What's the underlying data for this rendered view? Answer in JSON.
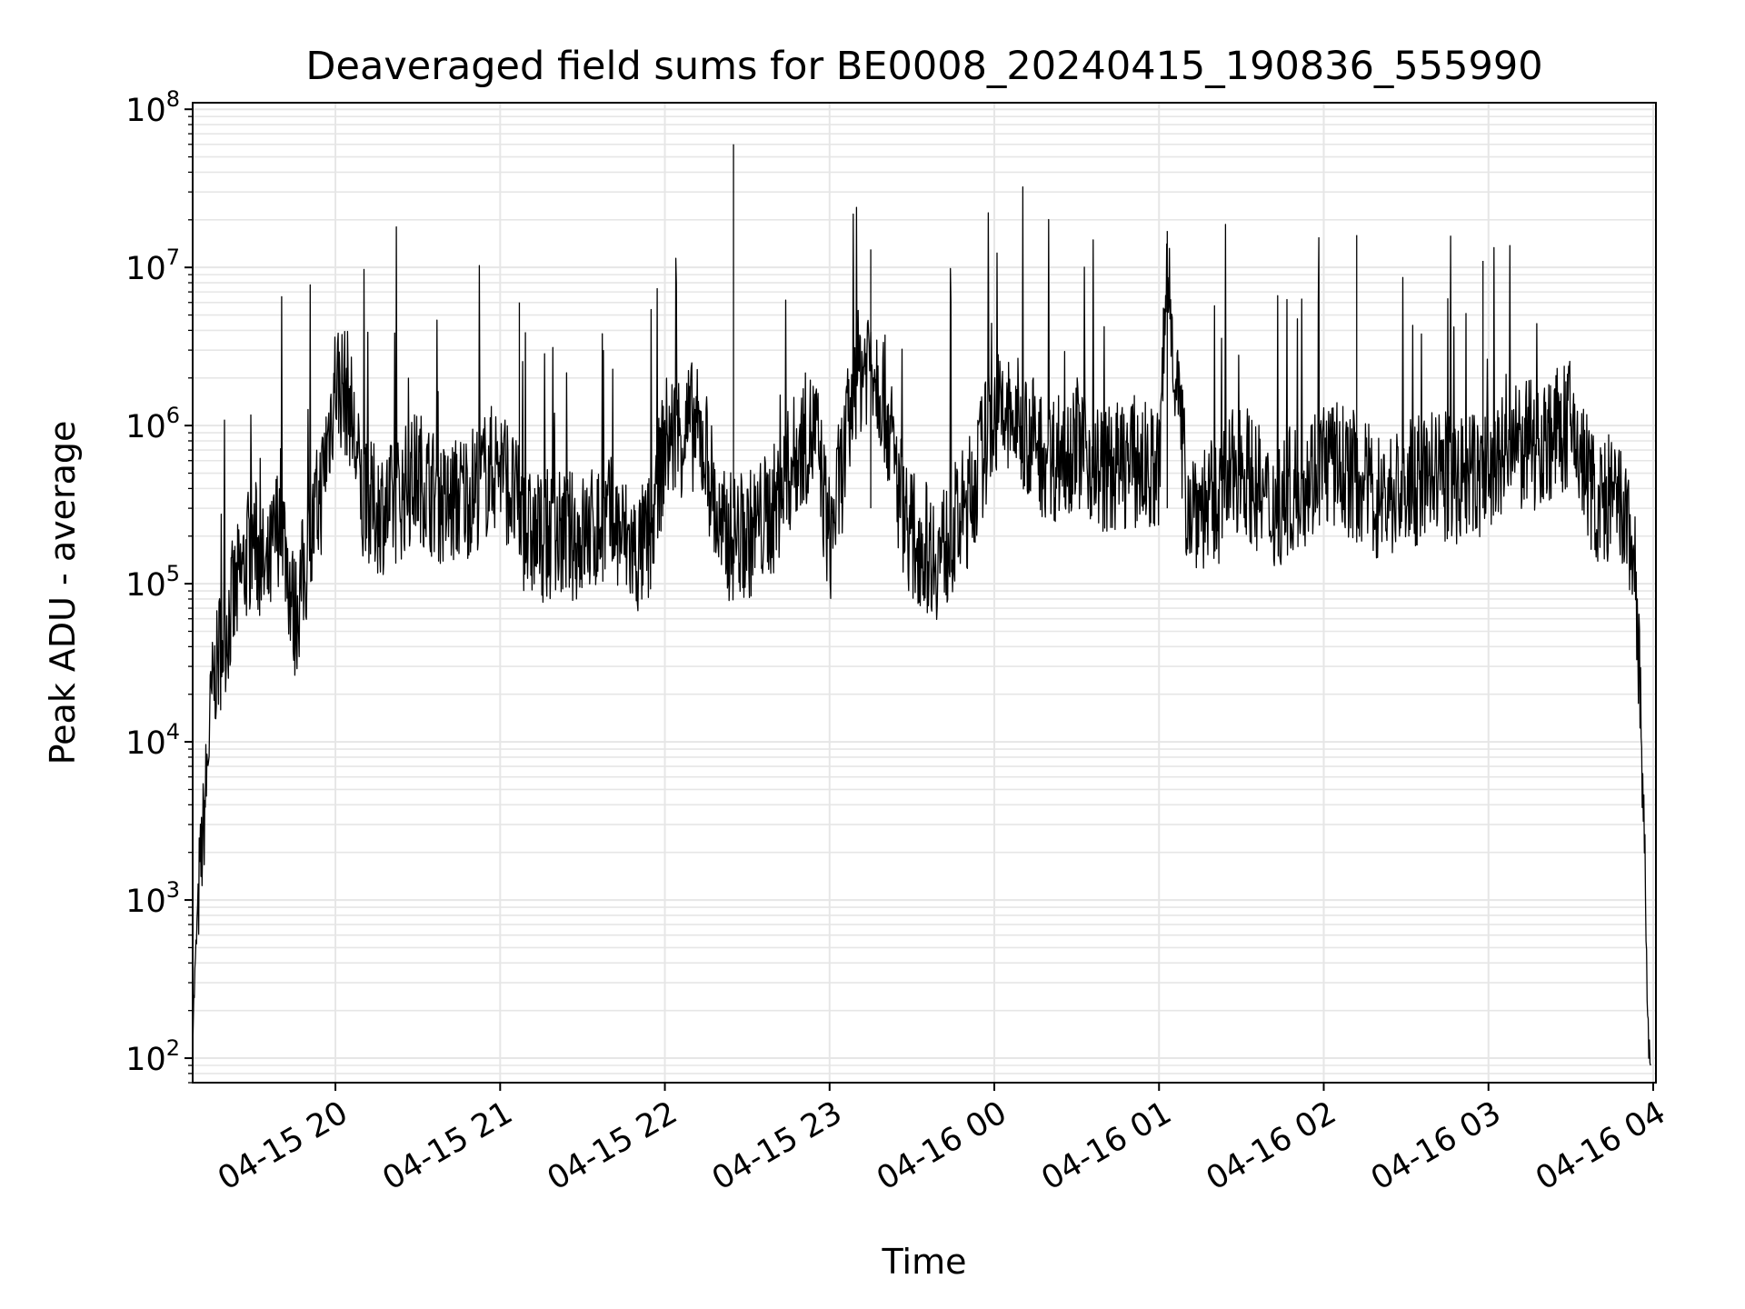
{
  "chart_data": {
    "type": "line",
    "title": "Deaveraged field sums for BE0008_20240415_190836_555990",
    "xlabel": "Time",
    "ylabel": "Peak ADU - average",
    "yscale": "log",
    "ylim": [
      70,
      110000000
    ],
    "xlim": [
      "2024-04-15 19:08",
      "2024-04-16 04:01"
    ],
    "grid": true,
    "legend": "none",
    "line_color": "#000000",
    "grid_color": "#e6e6e6",
    "x_ticks": [
      {
        "value": "2024-04-15 20:00",
        "label": "04-15 20"
      },
      {
        "value": "2024-04-15 21:00",
        "label": "04-15 21"
      },
      {
        "value": "2024-04-15 22:00",
        "label": "04-15 22"
      },
      {
        "value": "2024-04-15 23:00",
        "label": "04-15 23"
      },
      {
        "value": "2024-04-16 00:00",
        "label": "04-16 00"
      },
      {
        "value": "2024-04-16 01:00",
        "label": "04-16 01"
      },
      {
        "value": "2024-04-16 02:00",
        "label": "04-16 02"
      },
      {
        "value": "2024-04-16 03:00",
        "label": "04-16 03"
      },
      {
        "value": "2024-04-16 04:00",
        "label": "04-16 04"
      }
    ],
    "y_ticks": [
      {
        "value": 100,
        "base": "10",
        "exp": "2"
      },
      {
        "value": 1000,
        "base": "10",
        "exp": "3"
      },
      {
        "value": 10000,
        "base": "10",
        "exp": "4"
      },
      {
        "value": 100000,
        "base": "10",
        "exp": "5"
      },
      {
        "value": 1000000,
        "base": "10",
        "exp": "6"
      },
      {
        "value": 10000000,
        "base": "10",
        "exp": "7"
      },
      {
        "value": 100000000,
        "base": "10",
        "exp": "8"
      }
    ],
    "series": [
      {
        "x": [
          "2024-04-15 19:08",
          "2024-04-15 19:10",
          "2024-04-15 19:12",
          "2024-04-15 19:15",
          "2024-04-15 19:18",
          "2024-04-15 19:21",
          "2024-04-15 19:25",
          "2024-04-15 19:30",
          "2024-04-15 19:35",
          "2024-04-15 19:40",
          "2024-04-15 19:45",
          "2024-04-15 19:50",
          "2024-04-15 19:55",
          "2024-04-15 20:00",
          "2024-04-15 20:05",
          "2024-04-15 20:10",
          "2024-04-15 20:20",
          "2024-04-15 20:30",
          "2024-04-15 20:40",
          "2024-04-15 20:50",
          "2024-04-15 21:00",
          "2024-04-15 21:10",
          "2024-04-15 21:20",
          "2024-04-15 21:30",
          "2024-04-15 21:40",
          "2024-04-15 21:50",
          "2024-04-15 21:55",
          "2024-04-15 22:00",
          "2024-04-15 22:10",
          "2024-04-15 22:15",
          "2024-04-15 22:20",
          "2024-04-15 22:30",
          "2024-04-15 22:40",
          "2024-04-15 22:45",
          "2024-04-15 22:50",
          "2024-04-15 22:55",
          "2024-04-15 23:00",
          "2024-04-15 23:10",
          "2024-04-15 23:15",
          "2024-04-15 23:20",
          "2024-04-15 23:25",
          "2024-04-15 23:30",
          "2024-04-15 23:40",
          "2024-04-15 23:50",
          "2024-04-16 00:00",
          "2024-04-16 00:10",
          "2024-04-16 00:20",
          "2024-04-16 00:30",
          "2024-04-16 00:40",
          "2024-04-16 00:50",
          "2024-04-16 01:00",
          "2024-04-16 01:03",
          "2024-04-16 01:10",
          "2024-04-16 01:20",
          "2024-04-16 01:30",
          "2024-04-16 01:40",
          "2024-04-16 01:50",
          "2024-04-16 02:00",
          "2024-04-16 02:10",
          "2024-04-16 02:20",
          "2024-04-16 02:30",
          "2024-04-16 02:40",
          "2024-04-16 02:50",
          "2024-04-16 03:00",
          "2024-04-16 03:10",
          "2024-04-16 03:20",
          "2024-04-16 03:30",
          "2024-04-16 03:40",
          "2024-04-16 03:45",
          "2024-04-16 03:50",
          "2024-04-16 03:53",
          "2024-04-16 03:55",
          "2024-04-16 03:57",
          "2024-04-16 03:58",
          "2024-04-16 03:59"
        ],
        "y": [
          150,
          1000,
          3000,
          20000,
          40000,
          60000,
          100000,
          200000,
          100000,
          300000,
          60000,
          150000,
          400000,
          2000000,
          1500000,
          300000,
          300000,
          500000,
          300000,
          400000,
          600000,
          200000,
          200000,
          200000,
          250000,
          150000,
          200000,
          800000,
          1000000,
          700000,
          200000,
          200000,
          300000,
          500000,
          800000,
          900000,
          180000,
          2000000,
          3000000,
          1500000,
          400000,
          200000,
          150000,
          300000,
          1200000,
          1000000,
          600000,
          800000,
          500000,
          600000,
          500000,
          10000000,
          350000,
          300000,
          600000,
          300000,
          400000,
          600000,
          500000,
          350000,
          400000,
          500000,
          450000,
          500000,
          700000,
          800000,
          1000000,
          300000,
          350000,
          250000,
          150000,
          30000,
          1500,
          150,
          90
        ]
      }
    ]
  }
}
